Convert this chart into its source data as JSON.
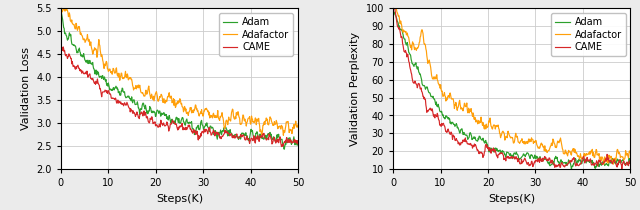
{
  "left_chart": {
    "xlabel": "Steps(K)",
    "ylabel": "Validation Loss",
    "xlim": [
      0,
      50
    ],
    "ylim": [
      2.0,
      5.5
    ],
    "yticks": [
      2.0,
      2.5,
      3.0,
      3.5,
      4.0,
      4.5,
      5.0,
      5.5
    ],
    "xticks": [
      0,
      10,
      20,
      30,
      40,
      50
    ],
    "legend": [
      "Adam",
      "Adafactor",
      "CAME"
    ],
    "colors": [
      "#2ca02c",
      "#ff9f0a",
      "#d62728"
    ]
  },
  "right_chart": {
    "xlabel": "Steps(K)",
    "ylabel": "Validation Perplexity",
    "xlim": [
      0,
      50
    ],
    "ylim": [
      10,
      100
    ],
    "yticks": [
      10,
      20,
      30,
      40,
      50,
      60,
      70,
      80,
      90,
      100
    ],
    "xticks": [
      0,
      10,
      20,
      30,
      40,
      50
    ],
    "legend": [
      "Adam",
      "Adafactor",
      "CAME"
    ],
    "colors": [
      "#2ca02c",
      "#ff9f0a",
      "#d62728"
    ]
  },
  "background_color": "#ebebeb",
  "plot_background": "#ffffff",
  "grid_color": "#cccccc"
}
